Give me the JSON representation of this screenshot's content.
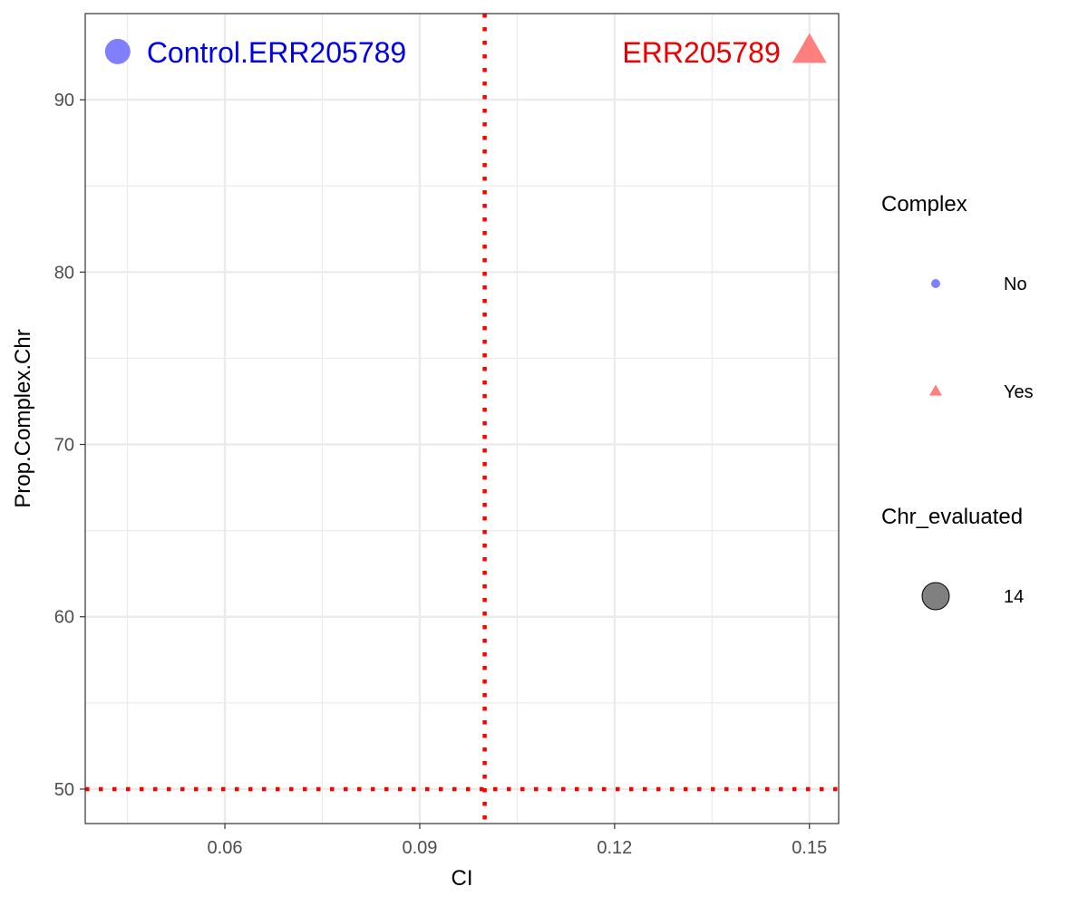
{
  "chart_data": {
    "type": "scatter",
    "xlabel": "CI",
    "ylabel": "Prop.Complex.Chr",
    "xlim": [
      0.0385,
      0.1545
    ],
    "ylim": [
      48,
      95
    ],
    "x_ticks": [
      0.06,
      0.09,
      0.12,
      0.15
    ],
    "x_tick_labels": [
      "0.06",
      "0.09",
      "0.12",
      "0.15"
    ],
    "y_ticks": [
      50,
      60,
      70,
      80,
      90
    ],
    "y_tick_labels": [
      "50",
      "60",
      "70",
      "80",
      "90"
    ],
    "grid": true,
    "reference_lines": [
      {
        "orientation": "vertical",
        "value": 0.1,
        "color": "#ff0000",
        "style": "dotted"
      },
      {
        "orientation": "horizontal",
        "value": 50,
        "color": "#ff0000",
        "style": "dotted"
      }
    ],
    "points": [
      {
        "label": "Control.ERR205789",
        "x": 0.0435,
        "y": 92.8,
        "complex": "No",
        "chr_evaluated": 14,
        "shape": "circle",
        "color": "#8080ff",
        "label_color": "#0000ee"
      },
      {
        "label": "ERR205789",
        "x": 0.15,
        "y": 92.8,
        "complex": "Yes",
        "chr_evaluated": 14,
        "shape": "triangle",
        "color": "#ff7f7f",
        "label_color": "#ee0000"
      }
    ],
    "legend": {
      "placement": "right",
      "complex": {
        "title": "Complex",
        "items": [
          {
            "label": "No",
            "shape": "circle",
            "color": "#8080ff"
          },
          {
            "label": "Yes",
            "shape": "triangle",
            "color": "#ff7f7f"
          }
        ]
      },
      "size": {
        "title": "Chr_evaluated",
        "items": [
          {
            "label": "14",
            "shape": "circle",
            "color": "#808080"
          }
        ]
      }
    }
  }
}
